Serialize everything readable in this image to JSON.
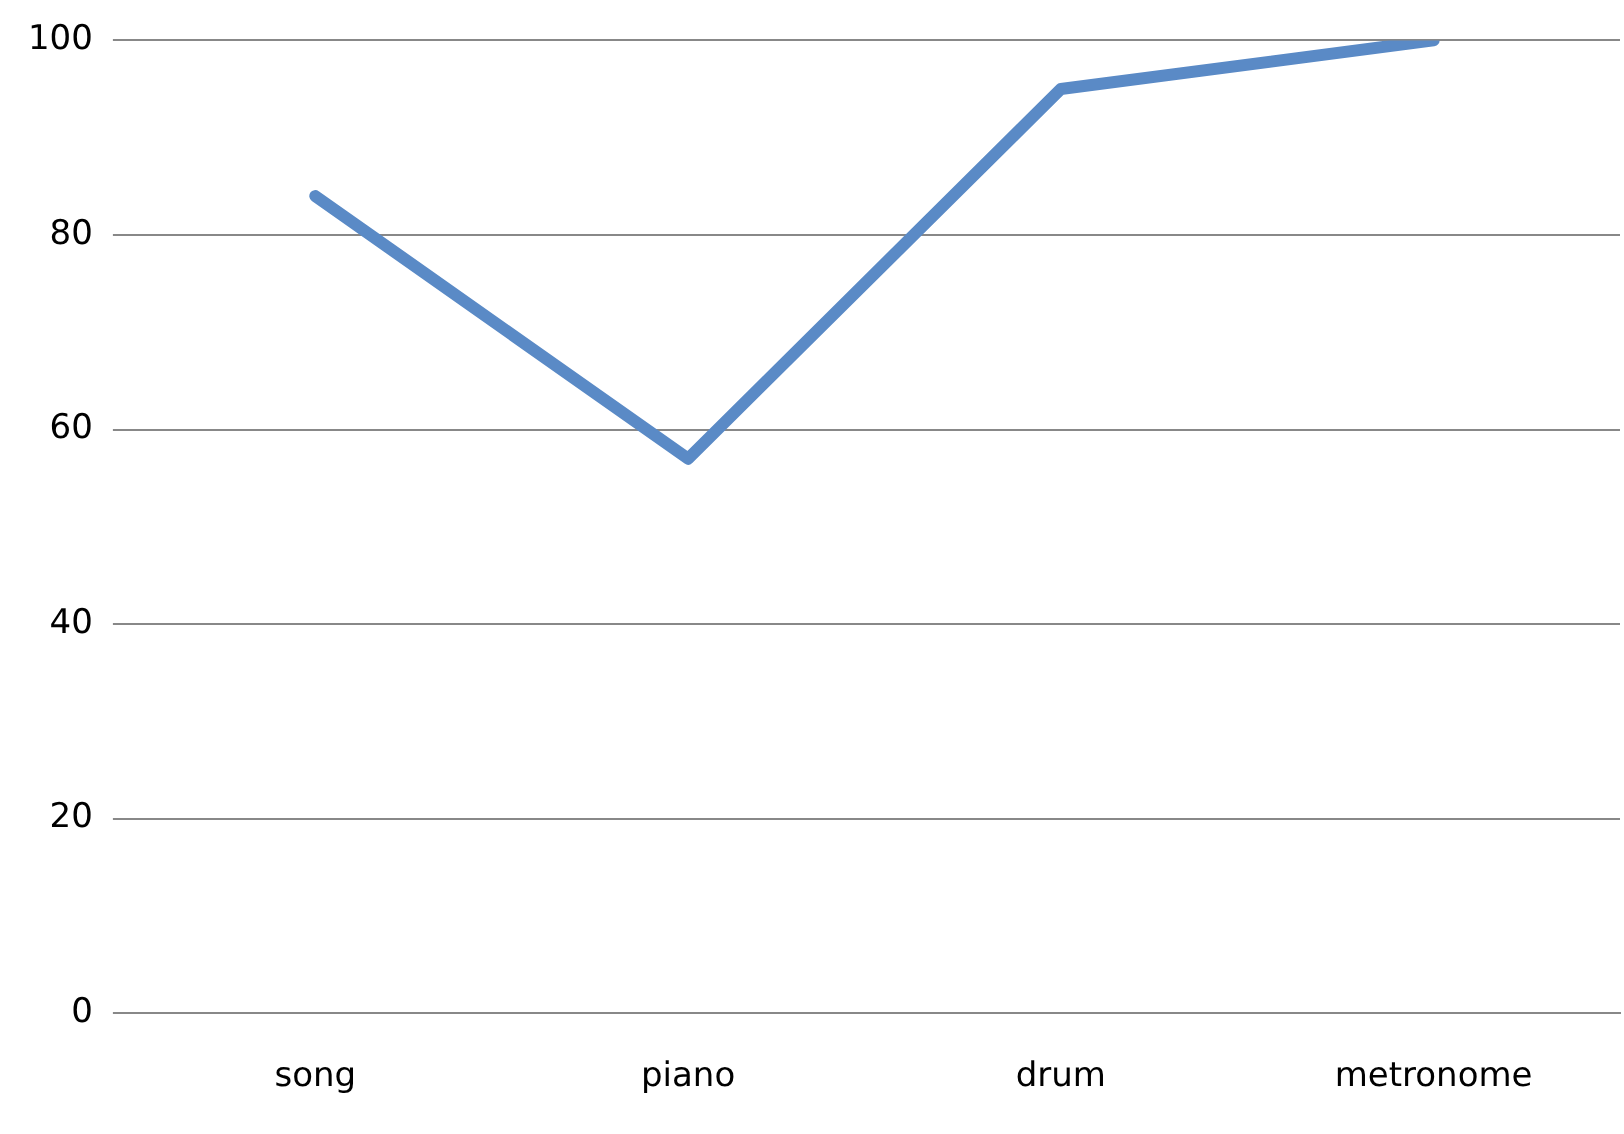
{
  "chart_data": {
    "type": "line",
    "categories": [
      "song",
      "piano",
      "drum",
      "metronome"
    ],
    "series": [
      {
        "color": "#5a8ac6",
        "values": [
          84,
          57,
          95,
          100
        ]
      }
    ],
    "ylim": [
      0,
      100
    ],
    "yticks": [
      0,
      20,
      40,
      60,
      80,
      100
    ],
    "grid": "y",
    "legend": false,
    "marker": "none",
    "line_style": "solid"
  }
}
